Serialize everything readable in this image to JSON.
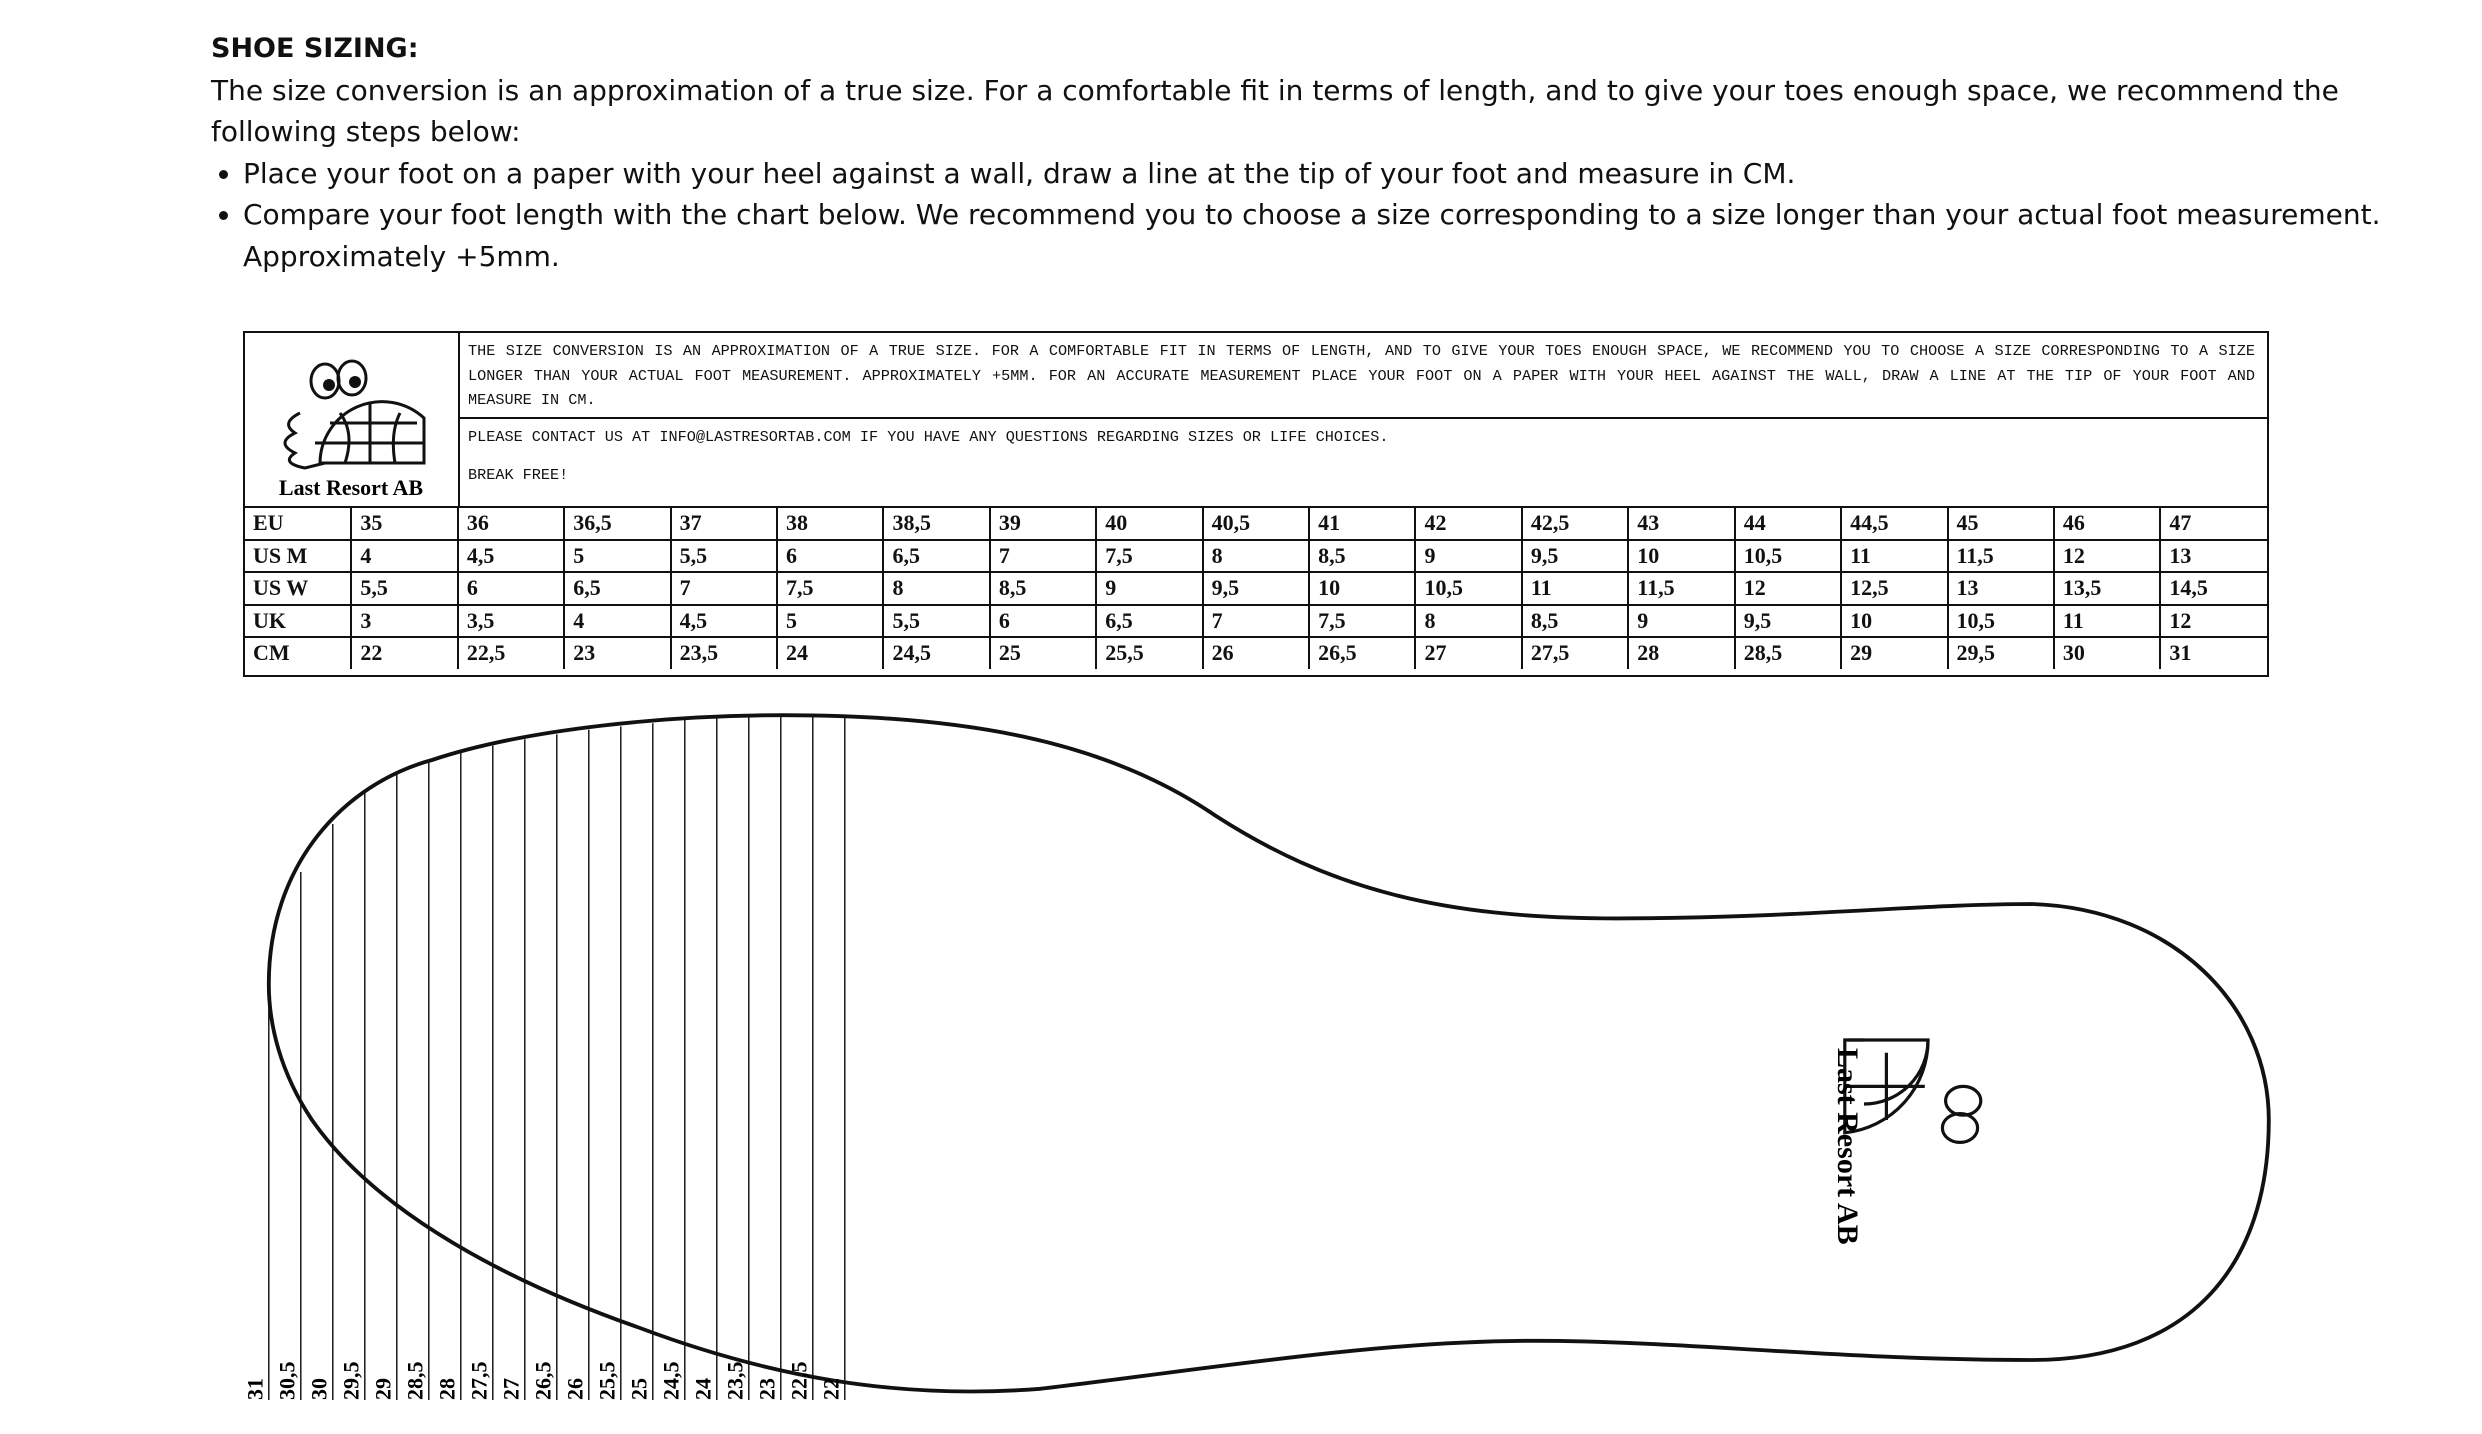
{
  "header": {
    "title": "SHOE SIZING:",
    "intro": "The size conversion is an approximation of a true size. For a comfortable fit in terms of length, and to give your toes enough space, we recommend the following steps below:"
  },
  "steps": [
    "Place your foot on a paper with your heel against a wall, draw a line at the tip of your foot and measure in CM.",
    "Compare your foot length with the chart below. We recommend you to choose a size corresponding to a size longer than your actual foot measurement. Approximately +5mm."
  ],
  "chart": {
    "brand": "Last Resort AB",
    "notes": [
      "THE SIZE CONVERSION IS AN APPROXIMATION OF A TRUE SIZE. FOR A COMFORTABLE FIT IN TERMS OF LENGTH, AND TO GIVE YOUR TOES ENOUGH SPACE, WE RECOMMEND YOU TO CHOOSE A SIZE CORRESPONDING TO A SIZE LONGER THAN YOUR ACTUAL FOOT MEASUREMENT. APPROXIMATELY +5MM. FOR AN ACCURATE MEASUREMENT PLACE YOUR FOOT ON A PAPER WITH YOUR HEEL AGAINST THE WALL, DRAW A LINE AT THE TIP OF YOUR FOOT AND MEASURE IN CM.",
      "PLEASE CONTACT US AT INFO@LASTRESORTAB.COM IF YOU HAVE ANY QUESTIONS REGARDING SIZES OR LIFE CHOICES.",
      "BREAK FREE!"
    ],
    "rows": [
      [
        "EU",
        "35",
        "36",
        "36,5",
        "37",
        "38",
        "38,5",
        "39",
        "40",
        "40,5",
        "41",
        "42",
        "42,5",
        "43",
        "44",
        "44,5",
        "45",
        "46",
        "47"
      ],
      [
        "US M",
        "4",
        "4,5",
        "5",
        "5,5",
        "6",
        "6,5",
        "7",
        "7,5",
        "8",
        "8,5",
        "9",
        "9,5",
        "10",
        "10,5",
        "11",
        "11,5",
        "12",
        "13"
      ],
      [
        "US W",
        "5,5",
        "6",
        "6,5",
        "7",
        "7,5",
        "8",
        "8,5",
        "9",
        "9,5",
        "10",
        "10,5",
        "11",
        "11,5",
        "12",
        "12,5",
        "13",
        "13,5",
        "14,5"
      ],
      [
        "UK",
        "3",
        "3,5",
        "4",
        "4,5",
        "5",
        "5,5",
        "6",
        "6,5",
        "7",
        "7,5",
        "8",
        "8,5",
        "9",
        "9,5",
        "10",
        "10,5",
        "11",
        "12"
      ],
      [
        "CM",
        "22",
        "22,5",
        "23",
        "23,5",
        "24",
        "24,5",
        "25",
        "25,5",
        "26",
        "26,5",
        "27",
        "27,5",
        "28",
        "28,5",
        "29",
        "29,5",
        "30",
        "31"
      ]
    ]
  },
  "foot": {
    "brand": "Last Resort AB",
    "scale": [
      "31",
      "30,5",
      "30",
      "29,5",
      "29",
      "28,5",
      "28",
      "27,5",
      "27",
      "26,5",
      "26",
      "25,5",
      "25",
      "24,5",
      "24",
      "23,5",
      "23",
      "22,5",
      "22"
    ]
  }
}
